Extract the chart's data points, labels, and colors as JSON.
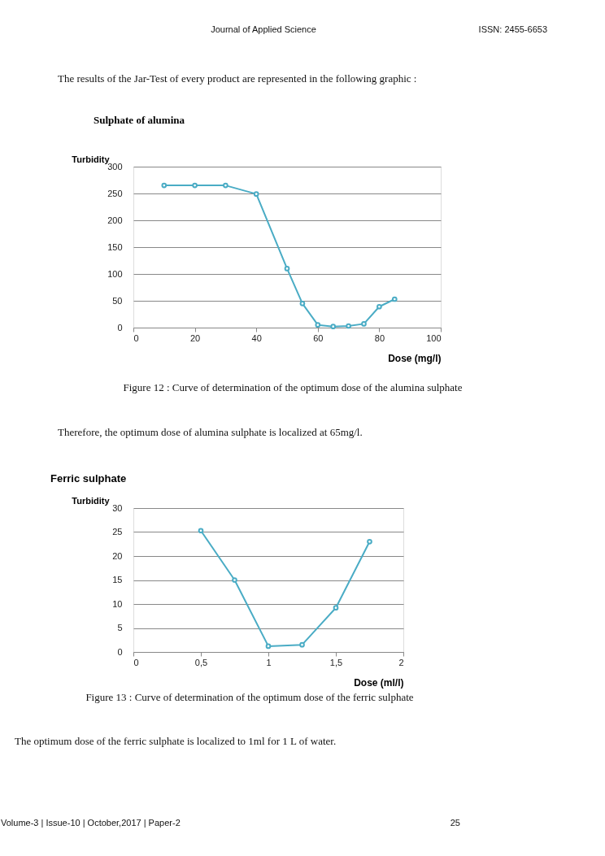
{
  "chart_data": [
    {
      "type": "line",
      "title": "Sulphate of alumina",
      "xlabel": "Dose (mg/l)",
      "ylabel": "Turbidity",
      "x": [
        10,
        20,
        30,
        40,
        50,
        55,
        60,
        65,
        70,
        75,
        80,
        85
      ],
      "series": [
        {
          "color": "#4aacc5",
          "values": [
            265,
            265,
            265,
            249,
            110,
            45,
            5,
            2,
            3,
            7,
            39,
            53
          ]
        }
      ],
      "xlim": [
        0,
        100
      ],
      "xticks": [
        0,
        20,
        40,
        60,
        80,
        100
      ],
      "ylim": [
        0,
        300
      ],
      "yticks": [
        0,
        50,
        100,
        150,
        200,
        250,
        300
      ],
      "grid": "y",
      "marker": "circle",
      "line_style": "solid",
      "annotations": [
        "Journal of Applied Science",
        "ISSN: 2455-6653",
        "The results of the Jar-Test of every product are represented in the following graphic :",
        "Figure 12 : Curve of determination of the optimum dose of the alumina sulphate",
        "Therefore, the optimum dose of alumina sulphate is localized at 65mg/l."
      ]
    },
    {
      "type": "line",
      "title": "Ferric sulphate",
      "xlabel": "Dose (ml/l)",
      "ylabel": "Turbidity",
      "x": [
        0.5,
        0.75,
        1,
        1.25,
        1.5,
        1.75
      ],
      "series": [
        {
          "color": "#4aacc5",
          "values": [
            25.3,
            15,
            1.2,
            1.5,
            9.2,
            23
          ]
        }
      ],
      "xlim": [
        0,
        2
      ],
      "xticks": [
        0,
        {
          "value": 0.5,
          "label": "0,5"
        },
        1,
        {
          "value": 1.5,
          "label": "1,5"
        },
        2
      ],
      "ylim": [
        0,
        30
      ],
      "yticks": [
        0,
        5,
        10,
        15,
        20,
        25,
        30
      ],
      "grid": "y",
      "marker": "circle",
      "line_style": "solid",
      "annotations": [
        "Figure 13 : Curve of determination of the optimum dose of the ferric sulphate",
        "The optimum dose of the ferric sulphate is localized to 1ml for 1 L of water.",
        "Volume-3 | Issue-10 | October,2017 | Paper-2",
        "25"
      ]
    }
  ]
}
